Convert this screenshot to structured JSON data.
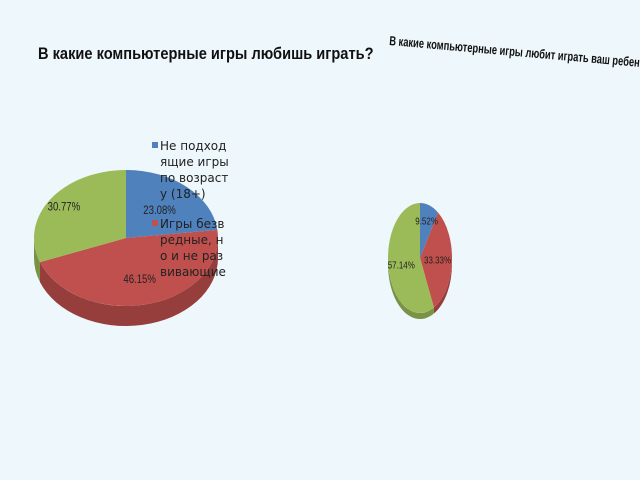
{
  "chart_data": [
    {
      "type": "pie",
      "style": "3d",
      "title": "В какие компьютерные игры любишь играть?",
      "categories": [
        "Не подходящие игры по возрасту (18+)",
        "Игры безвредные, но и не развивающие",
        ""
      ],
      "values": [
        23.08,
        46.15,
        30.77
      ],
      "labels": [
        "23.08%",
        "46.15%",
        "30.77%"
      ],
      "colors": [
        "#4f81bd",
        "#c0504d",
        "#9bbb59"
      ],
      "legend": "right"
    },
    {
      "type": "pie",
      "style": "3d",
      "title": "В какие компьютерные игры любит играть ваш ребенок?",
      "categories": [
        "",
        "",
        ""
      ],
      "values": [
        9.52,
        33.33,
        57.14
      ],
      "labels": [
        "9.52%",
        "33.33%",
        "57.14%"
      ],
      "colors": [
        "#4f81bd",
        "#c0504d",
        "#9bbb59"
      ]
    }
  ]
}
